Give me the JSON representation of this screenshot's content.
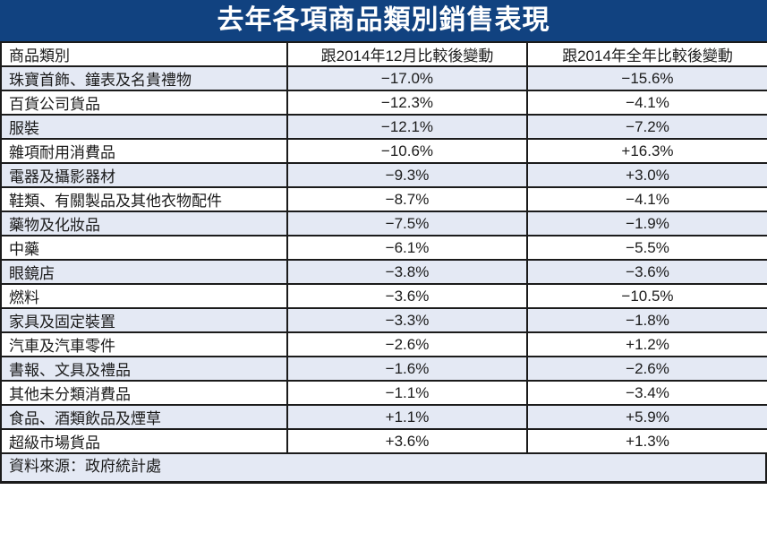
{
  "colors": {
    "title_bg": "#114280",
    "title_text": "#ffffff",
    "row_alt_bg": "#e4e9f4",
    "row_bg": "#ffffff",
    "border": "#1b1b1b",
    "text": "#1b1b1b"
  },
  "chart_data": {
    "type": "table",
    "title": "去年各項商品類別銷售表現",
    "columns": [
      "商品類別",
      "跟2014年12月比較後變動",
      "跟2014年全年比較後變動"
    ],
    "rows": [
      {
        "category": "珠寶首飾、鐘表及名貴禮物",
        "vs_dec2014": "−17.0%",
        "vs_year2014": "−15.6%"
      },
      {
        "category": "百貨公司貨品",
        "vs_dec2014": "−12.3%",
        "vs_year2014": "−4.1%"
      },
      {
        "category": "服裝",
        "vs_dec2014": "−12.1%",
        "vs_year2014": "−7.2%"
      },
      {
        "category": "雜項耐用消費品",
        "vs_dec2014": "−10.6%",
        "vs_year2014": "+16.3%"
      },
      {
        "category": "電器及攝影器材",
        "vs_dec2014": "−9.3%",
        "vs_year2014": "+3.0%"
      },
      {
        "category": "鞋類、有關製品及其他衣物配件",
        "vs_dec2014": "−8.7%",
        "vs_year2014": "−4.1%"
      },
      {
        "category": "藥物及化妝品",
        "vs_dec2014": "−7.5%",
        "vs_year2014": "−1.9%"
      },
      {
        "category": "中藥",
        "vs_dec2014": "−6.1%",
        "vs_year2014": "−5.5%"
      },
      {
        "category": "眼鏡店",
        "vs_dec2014": "−3.8%",
        "vs_year2014": "−3.6%"
      },
      {
        "category": "燃料",
        "vs_dec2014": "−3.6%",
        "vs_year2014": "−10.5%"
      },
      {
        "category": "家具及固定裝置",
        "vs_dec2014": "−3.3%",
        "vs_year2014": "−1.8%"
      },
      {
        "category": "汽車及汽車零件",
        "vs_dec2014": "−2.6%",
        "vs_year2014": "+1.2%"
      },
      {
        "category": "書報、文具及禮品",
        "vs_dec2014": "−1.6%",
        "vs_year2014": "−2.6%"
      },
      {
        "category": "其他未分類消費品",
        "vs_dec2014": "−1.1%",
        "vs_year2014": "−3.4%"
      },
      {
        "category": "食品、酒類飲品及煙草",
        "vs_dec2014": "+1.1%",
        "vs_year2014": "+5.9%"
      },
      {
        "category": "超級市場貨品",
        "vs_dec2014": "+3.6%",
        "vs_year2014": "+1.3%"
      }
    ],
    "source": "資料來源：政府統計處",
    "layout": {
      "legend": "none",
      "grid": "full-borders",
      "zebra_striping": true
    }
  }
}
